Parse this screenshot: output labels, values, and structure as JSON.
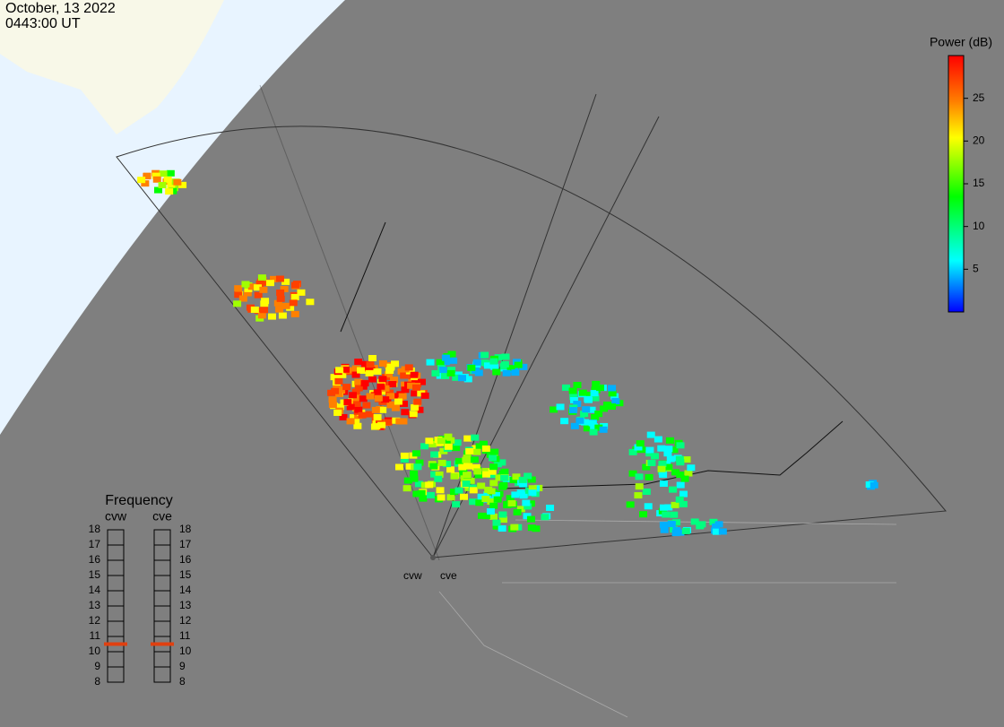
{
  "header": {
    "date": "October, 13 2022",
    "time": "0443:00 UT"
  },
  "colorbar": {
    "title": "Power (dB)",
    "range": [
      0,
      30
    ],
    "ticks": [
      5,
      10,
      15,
      20,
      25
    ]
  },
  "frequency": {
    "title": "Frequency",
    "range": [
      8,
      18
    ],
    "ticks": [
      8,
      9,
      10,
      11,
      12,
      13,
      14,
      15,
      16,
      17,
      18
    ],
    "radars": [
      {
        "name": "cvw",
        "value": 10.5
      },
      {
        "name": "cve",
        "value": 10.5
      }
    ]
  },
  "map": {
    "radar_labels": [
      "cvw",
      "cve"
    ]
  }
}
